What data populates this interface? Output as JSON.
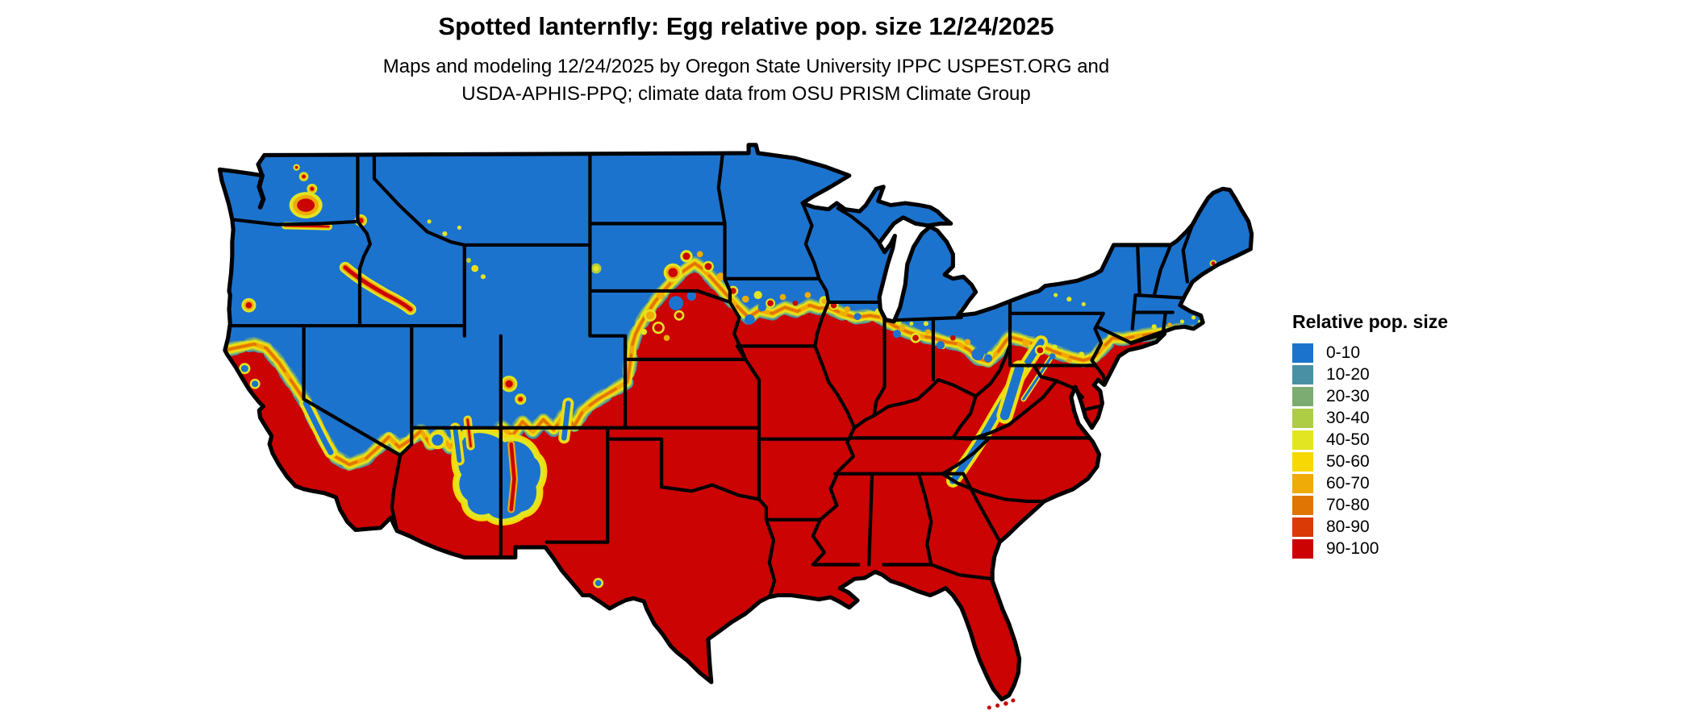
{
  "title": "Spotted lanternfly: Egg relative pop. size 12/24/2025",
  "subtitle_line1": "Maps and modeling 12/24/2025 by Oregon State University IPPC USPEST.ORG and",
  "subtitle_line2": "USDA-APHIS-PPQ; climate data from OSU PRISM Climate Group",
  "legend": {
    "title": "Relative pop. size",
    "items": [
      {
        "label": "0-10",
        "color": "#1C73CE"
      },
      {
        "label": "10-20",
        "color": "#4A90A4"
      },
      {
        "label": "20-30",
        "color": "#7CAC71"
      },
      {
        "label": "30-40",
        "color": "#AFCC45"
      },
      {
        "label": "40-50",
        "color": "#E2E521"
      },
      {
        "label": "50-60",
        "color": "#F7D804"
      },
      {
        "label": "60-70",
        "color": "#EFAB07"
      },
      {
        "label": "70-80",
        "color": "#E17504"
      },
      {
        "label": "80-90",
        "color": "#D93A06"
      },
      {
        "label": "90-100",
        "color": "#CB0303"
      }
    ]
  },
  "map": {
    "type": "choropleth-model-raster",
    "region": "Contiguous United States with state boundaries",
    "low_region": "north (0-10 relative pop. size)",
    "high_region": "south (90-100 relative pop. size)",
    "water_color": "#FFFFFF",
    "boundary_color": "#000000"
  }
}
